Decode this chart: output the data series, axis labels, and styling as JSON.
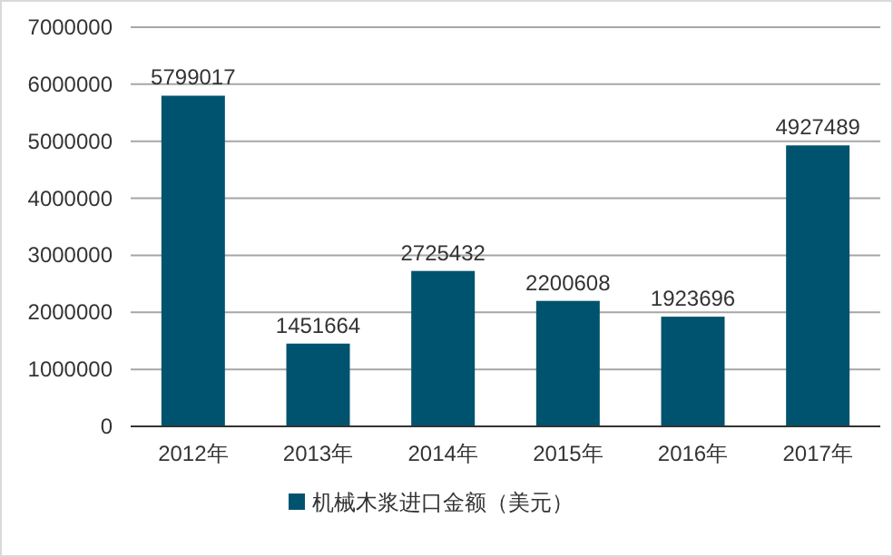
{
  "chart_data": {
    "type": "bar",
    "categories": [
      "2012年",
      "2013年",
      "2014年",
      "2015年",
      "2016年",
      "2017年"
    ],
    "series": [
      {
        "name": "机械木浆进口金额（美元）",
        "color": "#00536e",
        "values": [
          5799017,
          1451664,
          2725432,
          2200608,
          1923696,
          4927489
        ]
      }
    ],
    "ylim": [
      0,
      7000000
    ],
    "yticks": [
      0,
      1000000,
      2000000,
      3000000,
      4000000,
      5000000,
      6000000,
      7000000
    ],
    "grid": "y",
    "legend": "bottom",
    "data_labels": true
  }
}
